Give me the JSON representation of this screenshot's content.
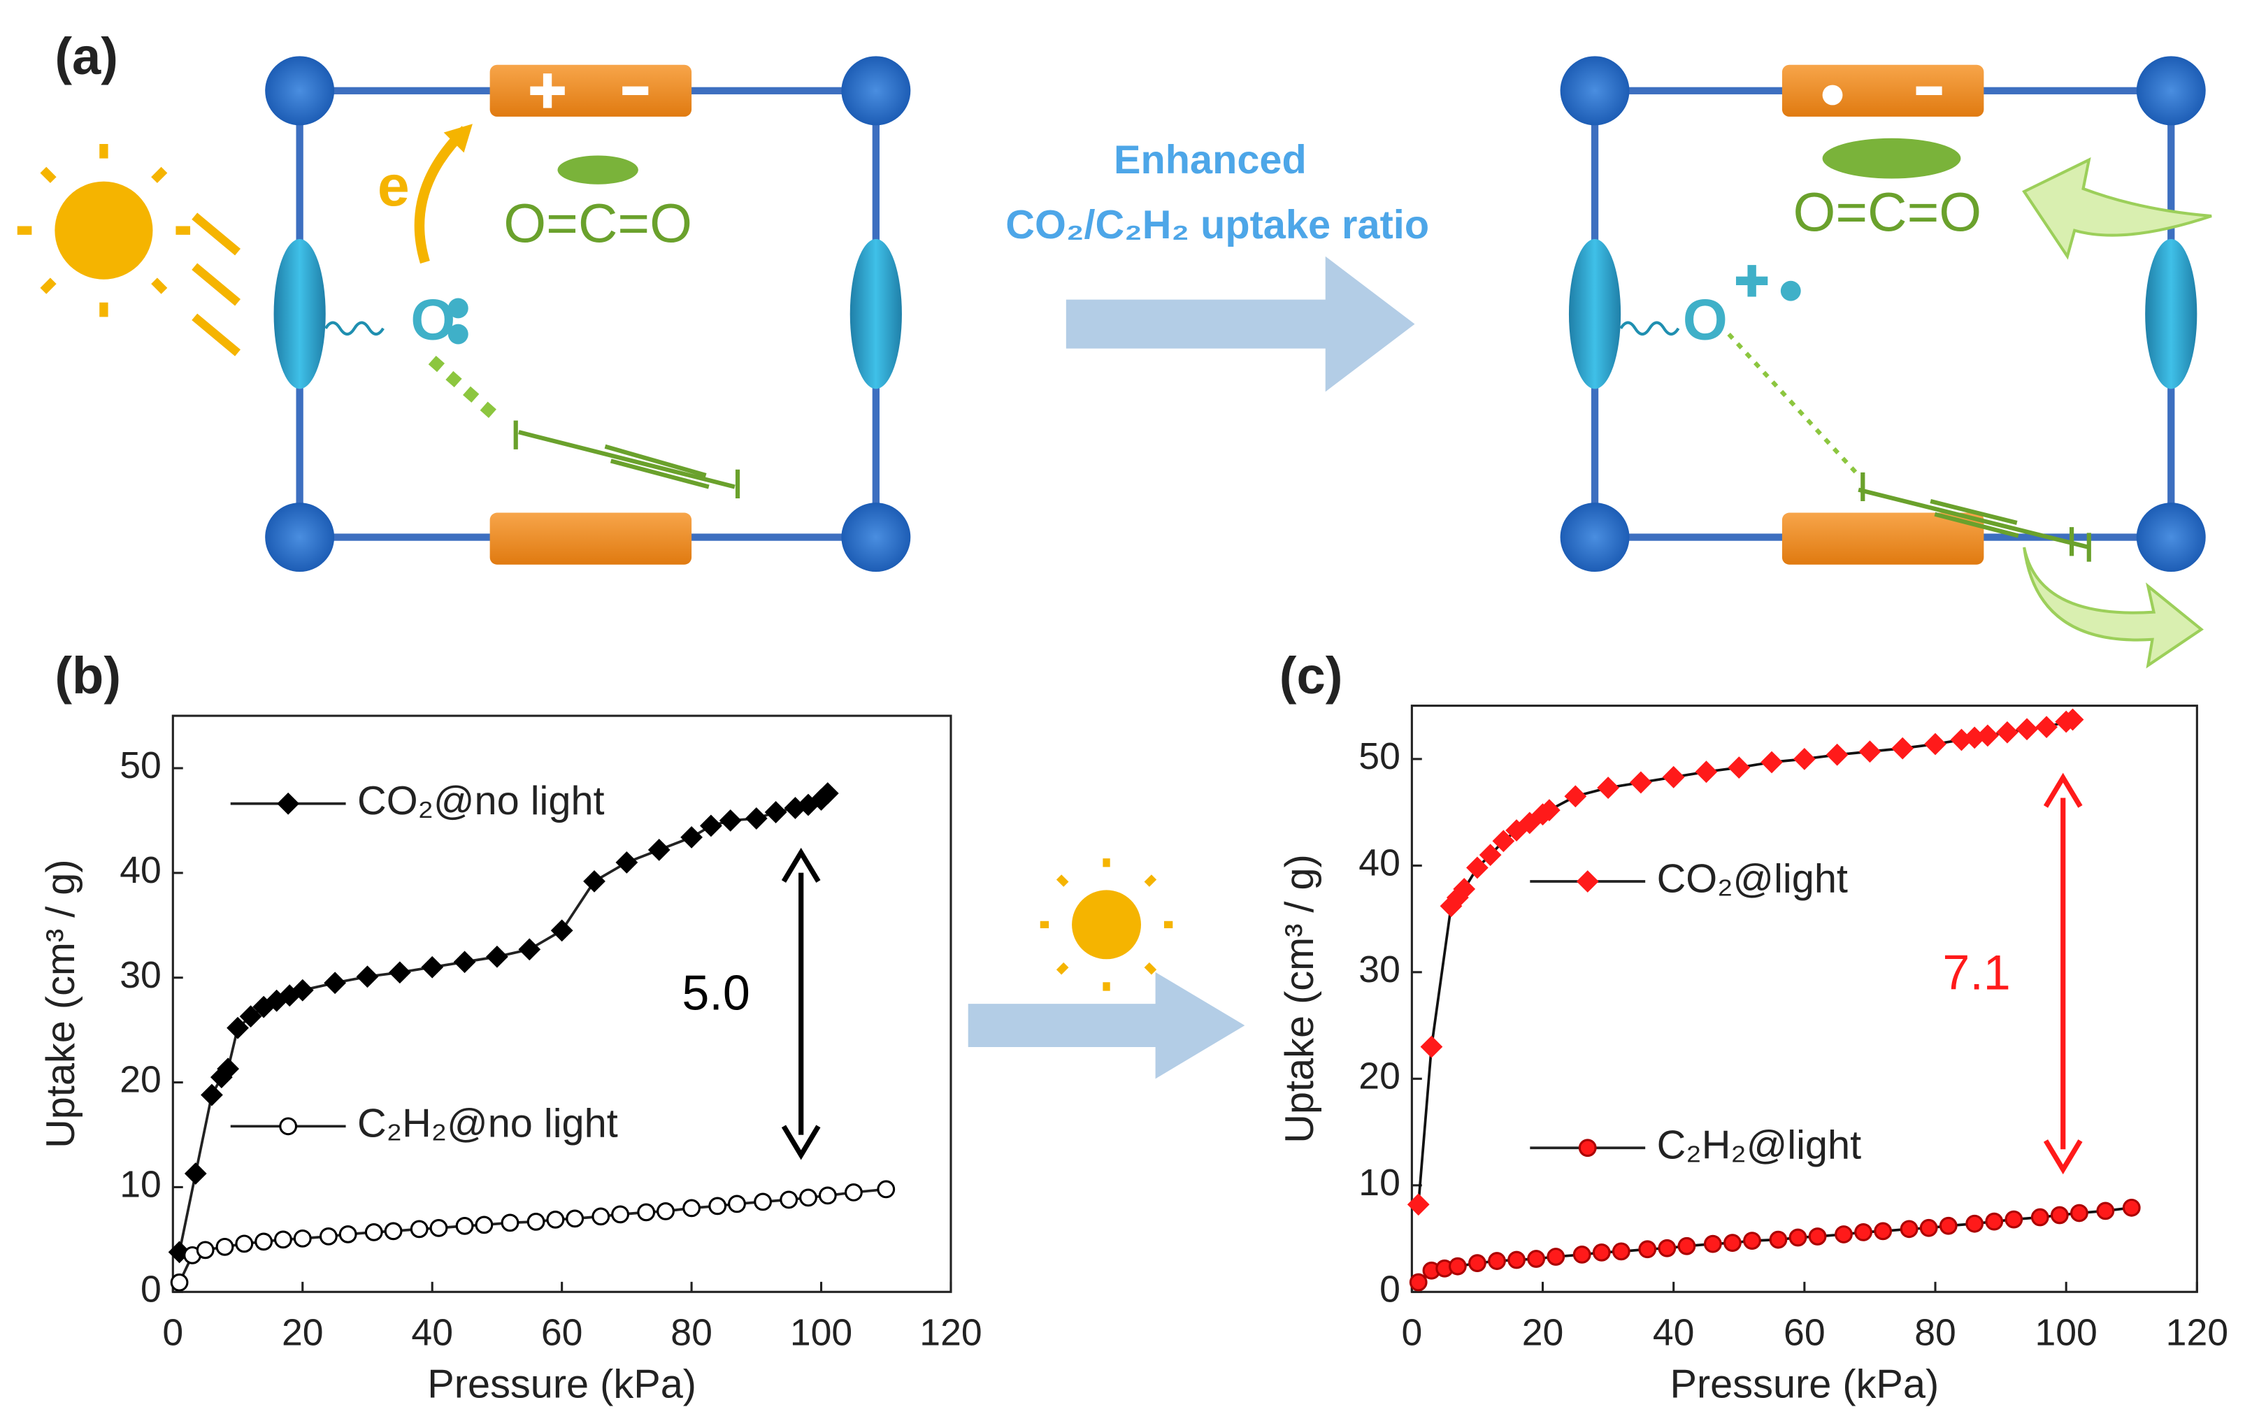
{
  "panel_labels": [
    "(a)",
    "(b)",
    "(c)"
  ],
  "schematic": {
    "arrow_text": [
      "Enhanced",
      "CO₂/C₂H₂ uptake ratio"
    ],
    "electron": "e",
    "co2": "O=C=O",
    "oxygen": "O"
  },
  "chart_data": [
    {
      "type": "line",
      "xlabel": "Pressure (kPa)",
      "ylabel": "Uptake (cm³ / g)",
      "xlim": [
        0,
        120
      ],
      "ylim": [
        0,
        55
      ],
      "xticks": [
        0,
        20,
        40,
        60,
        80,
        100,
        120
      ],
      "yticks": [
        0,
        10,
        20,
        30,
        40,
        50
      ],
      "annotation": "5.0",
      "annotation_color": "#000000",
      "series": [
        {
          "name": "CO₂@no light",
          "color": "#000000",
          "marker": "diamond",
          "marker_fill": "#000000",
          "x": [
            1,
            3.5,
            6,
            7.5,
            8.5,
            10,
            12,
            14,
            16,
            18,
            20,
            25,
            30,
            35,
            40,
            45,
            50,
            55,
            60,
            65,
            70,
            75,
            80,
            83,
            86,
            90,
            93,
            96,
            98,
            100,
            101
          ],
          "values": [
            3.8,
            11.3,
            18.8,
            20.5,
            21.3,
            25.2,
            26.3,
            27.2,
            27.8,
            28.3,
            28.8,
            29.5,
            30.1,
            30.5,
            31,
            31.5,
            32,
            32.7,
            34.5,
            39.2,
            41,
            42.2,
            43.4,
            44.5,
            45,
            45.2,
            45.8,
            46.2,
            46.5,
            47,
            47.6
          ]
        },
        {
          "name": "C₂H₂@no light",
          "color": "#000000",
          "marker": "circle",
          "marker_fill": "#ffffff",
          "x": [
            1,
            3,
            5,
            8,
            11,
            14,
            17,
            20,
            24,
            27,
            31,
            34,
            38,
            41,
            45,
            48,
            52,
            56,
            59,
            62,
            66,
            69,
            73,
            76,
            80,
            84,
            87,
            91,
            95,
            98,
            101,
            105,
            110
          ],
          "values": [
            0.9,
            3.5,
            4,
            4.3,
            4.6,
            4.8,
            5,
            5.1,
            5.3,
            5.5,
            5.7,
            5.8,
            6,
            6.1,
            6.3,
            6.4,
            6.6,
            6.7,
            6.9,
            7,
            7.2,
            7.4,
            7.6,
            7.7,
            8,
            8.2,
            8.4,
            8.6,
            8.8,
            9,
            9.2,
            9.5,
            9.8
          ]
        }
      ]
    },
    {
      "type": "line",
      "xlabel": "Pressure (kPa)",
      "ylabel": "Uptake (cm³ / g)",
      "xlim": [
        0,
        120
      ],
      "ylim": [
        0,
        55
      ],
      "xticks": [
        0,
        20,
        40,
        60,
        80,
        100,
        120
      ],
      "yticks": [
        0,
        10,
        20,
        30,
        40,
        50
      ],
      "annotation": "7.1",
      "annotation_color": "#ff1a1a",
      "series": [
        {
          "name": "CO₂@light",
          "color": "#ff1a1a",
          "marker": "diamond",
          "marker_fill": "#ff1a1a",
          "x": [
            1,
            3,
            6,
            7,
            8,
            10,
            12,
            14,
            16,
            18,
            20,
            21,
            25,
            30,
            35,
            40,
            45,
            50,
            55,
            60,
            65,
            70,
            75,
            80,
            84,
            86,
            88,
            91,
            94,
            97,
            100,
            101
          ],
          "values": [
            8.2,
            23,
            36.2,
            37,
            37.8,
            39.8,
            41,
            42.3,
            43.3,
            44,
            44.8,
            45.2,
            46.5,
            47.3,
            47.8,
            48.3,
            48.8,
            49.2,
            49.7,
            50,
            50.4,
            50.7,
            51,
            51.4,
            51.8,
            52,
            52.2,
            52.5,
            52.8,
            53,
            53.5,
            53.7
          ]
        },
        {
          "name": "C₂H₂@light",
          "color": "#ff1a1a",
          "marker": "circle",
          "marker_fill": "#ff1a1a",
          "x": [
            1,
            3,
            5,
            7,
            10,
            13,
            16,
            19,
            22,
            26,
            29,
            32,
            36,
            39,
            42,
            46,
            49,
            52,
            56,
            59,
            62,
            66,
            69,
            72,
            76,
            79,
            82,
            86,
            89,
            92,
            96,
            99,
            102,
            106,
            110
          ],
          "values": [
            0.9,
            2,
            2.2,
            2.4,
            2.7,
            2.9,
            3,
            3.1,
            3.3,
            3.5,
            3.7,
            3.8,
            4,
            4.1,
            4.3,
            4.5,
            4.6,
            4.8,
            4.9,
            5.1,
            5.2,
            5.4,
            5.6,
            5.7,
            5.9,
            6,
            6.2,
            6.4,
            6.6,
            6.8,
            7,
            7.2,
            7.4,
            7.6,
            7.9
          ]
        }
      ]
    }
  ]
}
